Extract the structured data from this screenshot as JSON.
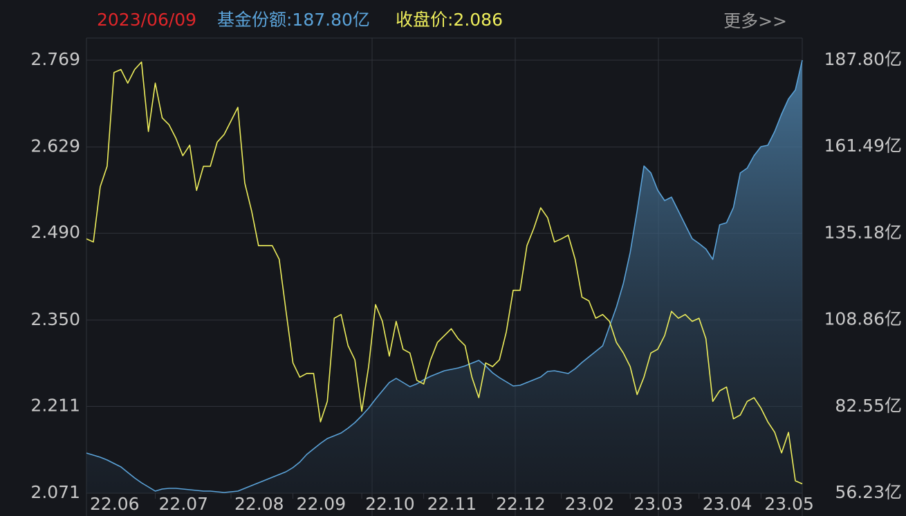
{
  "chart_data": {
    "type": "line-area",
    "header": {
      "date": "2023/06/09",
      "share": "基金份额:187.80亿",
      "close": "收盘价:2.086",
      "more": "更多>>"
    },
    "categories": [
      "22.06",
      null,
      null,
      null,
      null,
      null,
      null,
      null,
      null,
      null,
      "22.07",
      null,
      null,
      null,
      null,
      null,
      null,
      null,
      null,
      null,
      null,
      "22.08",
      null,
      null,
      null,
      null,
      null,
      null,
      null,
      null,
      "22.09",
      null,
      null,
      null,
      null,
      null,
      null,
      null,
      null,
      null,
      "22.10",
      null,
      null,
      null,
      null,
      null,
      null,
      null,
      null,
      "22.11",
      null,
      null,
      null,
      null,
      null,
      null,
      null,
      null,
      null,
      "22.12",
      null,
      null,
      null,
      null,
      null,
      null,
      null,
      null,
      null,
      "23.02",
      null,
      null,
      null,
      null,
      null,
      null,
      null,
      null,
      null,
      "23.03",
      null,
      null,
      null,
      null,
      null,
      null,
      null,
      null,
      null,
      "23.04",
      null,
      null,
      null,
      null,
      null,
      null,
      null,
      null,
      "23.05",
      null,
      null,
      null,
      null,
      null,
      null
    ],
    "series": [
      {
        "color": "#eeee5c",
        "axis": "y",
        "values": [
          2.481,
          2.476,
          2.565,
          2.598,
          2.749,
          2.754,
          2.732,
          2.754,
          2.766,
          2.654,
          2.732,
          2.676,
          2.665,
          2.643,
          2.615,
          2.632,
          2.559,
          2.598,
          2.598,
          2.637,
          2.649,
          2.671,
          2.693,
          2.571,
          2.526,
          2.47,
          2.47,
          2.47,
          2.448,
          2.364,
          2.281,
          2.258,
          2.264,
          2.264,
          2.186,
          2.219,
          2.353,
          2.359,
          2.309,
          2.286,
          2.203,
          2.275,
          2.375,
          2.348,
          2.292,
          2.348,
          2.303,
          2.297,
          2.253,
          2.247,
          2.286,
          2.314,
          2.325,
          2.336,
          2.32,
          2.309,
          2.258,
          2.225,
          2.281,
          2.275,
          2.286,
          2.331,
          2.398,
          2.398,
          2.47,
          2.498,
          2.531,
          2.515,
          2.476,
          2.481,
          2.487,
          2.448,
          2.387,
          2.381,
          2.353,
          2.359,
          2.348,
          2.314,
          2.297,
          2.275,
          2.23,
          2.258,
          2.297,
          2.303,
          2.325,
          2.364,
          2.353,
          2.359,
          2.348,
          2.353,
          2.32,
          2.219,
          2.236,
          2.242,
          2.191,
          2.197,
          2.219,
          2.225,
          2.208,
          2.186,
          2.169,
          2.136,
          2.169,
          2.091,
          2.086
        ]
      },
      {
        "color": "#5ba3d9",
        "axis": "y2",
        "values": [
          68.42,
          67.79,
          67.16,
          66.32,
          65.27,
          64.22,
          62.54,
          60.85,
          59.38,
          58.12,
          56.86,
          57.49,
          57.7,
          57.7,
          57.49,
          57.28,
          57.07,
          56.86,
          56.86,
          56.65,
          56.44,
          56.65,
          56.86,
          57.7,
          58.54,
          59.38,
          60.22,
          61.06,
          61.9,
          62.75,
          64.01,
          65.69,
          68.0,
          69.68,
          71.36,
          72.83,
          73.67,
          74.52,
          75.99,
          77.67,
          79.77,
          82.08,
          84.81,
          87.34,
          89.86,
          91.12,
          89.86,
          88.6,
          89.44,
          90.7,
          91.75,
          92.59,
          93.43,
          93.85,
          94.27,
          94.9,
          95.74,
          96.58,
          94.9,
          92.8,
          91.33,
          90.07,
          88.81,
          89.02,
          89.86,
          90.7,
          91.54,
          93.22,
          93.43,
          93.01,
          92.59,
          94.06,
          95.95,
          97.64,
          99.32,
          101.0,
          106.88,
          112.77,
          119.91,
          129.37,
          141.98,
          155.65,
          153.54,
          148.29,
          145.14,
          146.19,
          141.98,
          137.78,
          133.58,
          132.1,
          130.42,
          127.27,
          137.78,
          138.41,
          143.03,
          153.54,
          155.01,
          158.8,
          161.53,
          161.95,
          166.15,
          171.41,
          176.03,
          178.76,
          187.8
        ]
      }
    ],
    "ylim": [
      2.071,
      2.769
    ],
    "yticks": [
      2.769,
      2.629,
      {
        "value": 2.49,
        "label": "2.490"
      },
      {
        "value": 2.35,
        "label": "2.350"
      },
      2.211,
      2.071
    ],
    "y2lim": [
      56.23,
      187.8
    ],
    "y2ticks": [
      {
        "value": 187.8,
        "label": "187.80亿"
      },
      {
        "value": 161.49,
        "label": "161.49亿"
      },
      {
        "value": 135.18,
        "label": "135.18亿"
      },
      {
        "value": 108.86,
        "label": "108.86亿"
      },
      {
        "value": 82.55,
        "label": "82.55亿"
      },
      {
        "value": 56.23,
        "label": "56.23亿"
      }
    ],
    "grid": true
  }
}
